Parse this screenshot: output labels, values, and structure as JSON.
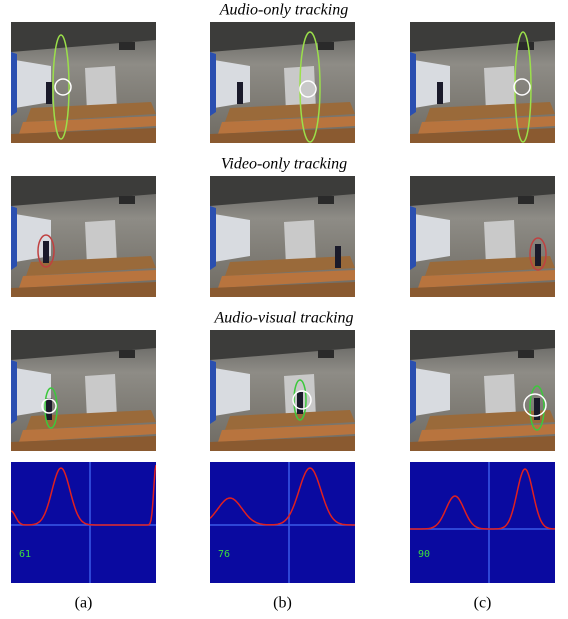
{
  "section_titles": [
    "Audio-only tracking",
    "Video-only tracking",
    "Audio-visual tracking"
  ],
  "plot_labels": [
    61,
    76,
    90
  ],
  "panel_labels": [
    "(a)",
    "(b)",
    "(c)"
  ]
}
